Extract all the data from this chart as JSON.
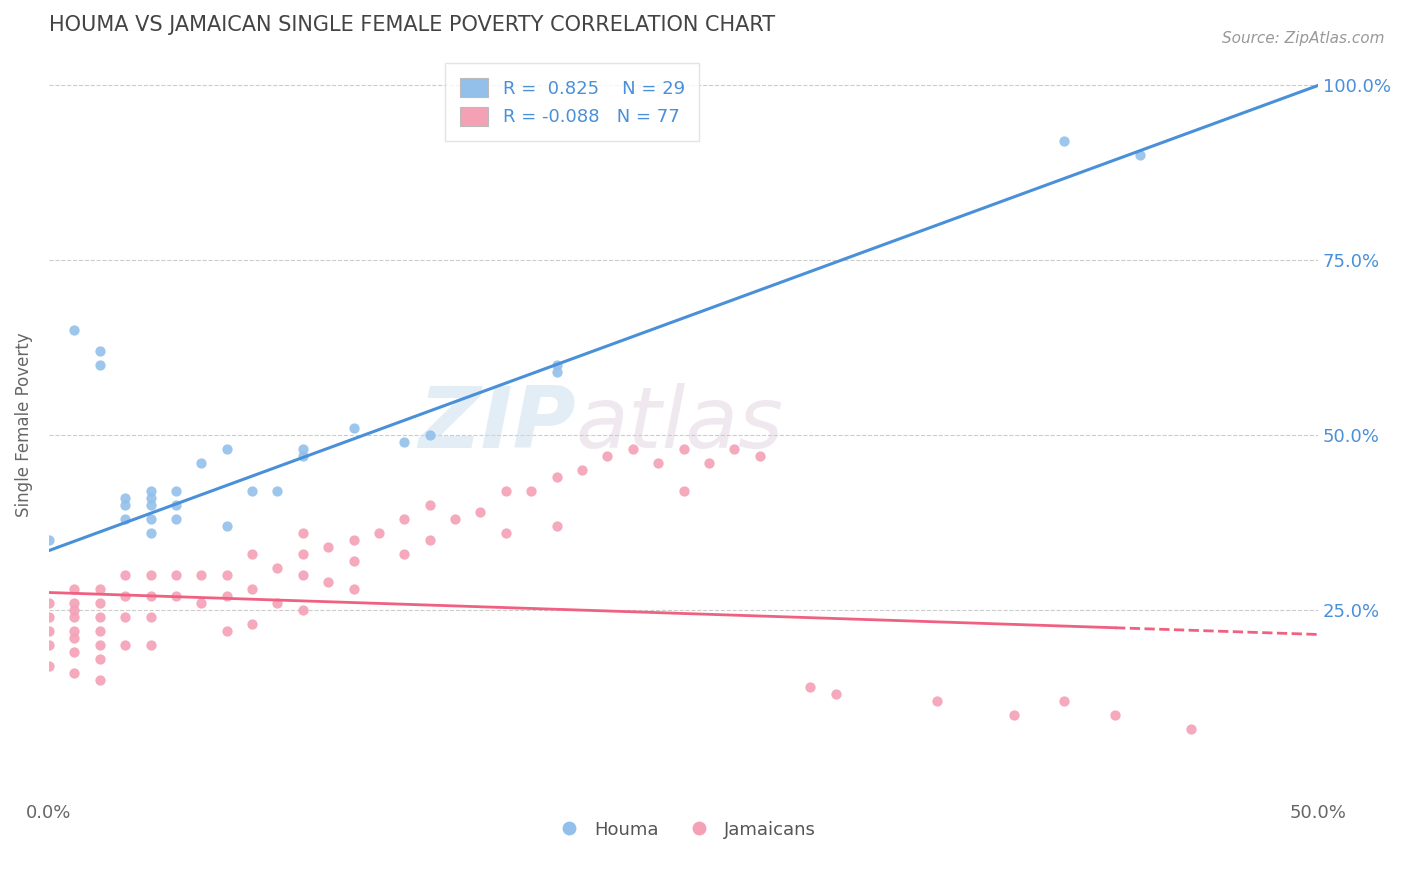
{
  "title": "HOUMA VS JAMAICAN SINGLE FEMALE POVERTY CORRELATION CHART",
  "source_text": "Source: ZipAtlas.com",
  "ylabel": "Single Female Poverty",
  "xlim": [
    0.0,
    0.5
  ],
  "ylim": [
    -0.02,
    1.05
  ],
  "houma_color": "#92C0EA",
  "jamaican_color": "#F4A0B5",
  "houma_line_color": "#4A90D9",
  "jamaican_line_color": "#F06080",
  "houma_R": 0.825,
  "houma_N": 29,
  "jamaican_R": -0.088,
  "jamaican_N": 77,
  "houma_line_x0": 0.0,
  "houma_line_y0": 0.335,
  "houma_line_x1": 0.5,
  "houma_line_y1": 1.0,
  "jamaican_line_x0": 0.0,
  "jamaican_line_y0": 0.275,
  "jamaican_line_x1": 0.5,
  "jamaican_line_y1": 0.215,
  "houma_scatter_x": [
    0.0,
    0.01,
    0.02,
    0.02,
    0.03,
    0.03,
    0.03,
    0.04,
    0.04,
    0.04,
    0.04,
    0.04,
    0.05,
    0.05,
    0.05,
    0.06,
    0.07,
    0.07,
    0.08,
    0.09,
    0.1,
    0.1,
    0.12,
    0.14,
    0.15,
    0.2,
    0.2,
    0.4,
    0.43
  ],
  "houma_scatter_y": [
    0.35,
    0.65,
    0.62,
    0.6,
    0.41,
    0.4,
    0.38,
    0.42,
    0.41,
    0.4,
    0.38,
    0.36,
    0.42,
    0.4,
    0.38,
    0.46,
    0.48,
    0.37,
    0.42,
    0.42,
    0.48,
    0.47,
    0.51,
    0.49,
    0.5,
    0.6,
    0.59,
    0.92,
    0.9
  ],
  "jamaican_scatter_x": [
    0.0,
    0.0,
    0.0,
    0.0,
    0.0,
    0.01,
    0.01,
    0.01,
    0.01,
    0.01,
    0.01,
    0.01,
    0.01,
    0.02,
    0.02,
    0.02,
    0.02,
    0.02,
    0.02,
    0.02,
    0.03,
    0.03,
    0.03,
    0.03,
    0.04,
    0.04,
    0.04,
    0.04,
    0.05,
    0.05,
    0.06,
    0.06,
    0.07,
    0.07,
    0.07,
    0.08,
    0.08,
    0.08,
    0.09,
    0.09,
    0.1,
    0.1,
    0.1,
    0.1,
    0.11,
    0.11,
    0.12,
    0.12,
    0.12,
    0.13,
    0.14,
    0.14,
    0.15,
    0.15,
    0.16,
    0.17,
    0.18,
    0.18,
    0.19,
    0.2,
    0.2,
    0.21,
    0.22,
    0.23,
    0.24,
    0.25,
    0.25,
    0.26,
    0.27,
    0.28,
    0.3,
    0.31,
    0.35,
    0.38,
    0.4,
    0.42,
    0.45
  ],
  "jamaican_scatter_y": [
    0.26,
    0.24,
    0.22,
    0.2,
    0.17,
    0.28,
    0.26,
    0.25,
    0.24,
    0.22,
    0.21,
    0.19,
    0.16,
    0.28,
    0.26,
    0.24,
    0.22,
    0.2,
    0.18,
    0.15,
    0.3,
    0.27,
    0.24,
    0.2,
    0.3,
    0.27,
    0.24,
    0.2,
    0.3,
    0.27,
    0.3,
    0.26,
    0.3,
    0.27,
    0.22,
    0.33,
    0.28,
    0.23,
    0.31,
    0.26,
    0.36,
    0.33,
    0.3,
    0.25,
    0.34,
    0.29,
    0.35,
    0.32,
    0.28,
    0.36,
    0.38,
    0.33,
    0.4,
    0.35,
    0.38,
    0.39,
    0.42,
    0.36,
    0.42,
    0.44,
    0.37,
    0.45,
    0.47,
    0.48,
    0.46,
    0.48,
    0.42,
    0.46,
    0.48,
    0.47,
    0.14,
    0.13,
    0.12,
    0.1,
    0.12,
    0.1,
    0.08
  ],
  "watermark_zip": "ZIP",
  "watermark_atlas": "atlas",
  "background_color": "#FFFFFF",
  "grid_color": "#CCCCCC",
  "title_color": "#444444",
  "legend_label_houma": "Houma",
  "legend_label_jamaican": "Jamaicans"
}
